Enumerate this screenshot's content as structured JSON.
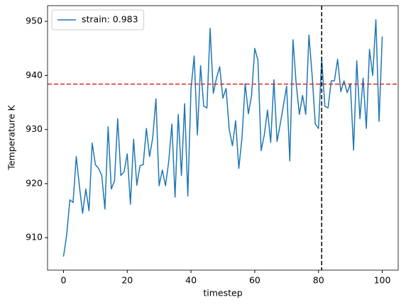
{
  "chart_data": {
    "type": "line",
    "x_label": "timestep",
    "y_label": "Temperature K",
    "x": [
      0,
      1,
      2,
      3,
      4,
      5,
      6,
      7,
      8,
      9,
      10,
      11,
      12,
      13,
      14,
      15,
      16,
      17,
      18,
      19,
      20,
      21,
      22,
      23,
      24,
      25,
      26,
      27,
      28,
      29,
      30,
      31,
      32,
      33,
      34,
      35,
      36,
      37,
      38,
      39,
      40,
      41,
      42,
      43,
      44,
      45,
      46,
      47,
      48,
      49,
      50,
      51,
      52,
      53,
      54,
      55,
      56,
      57,
      58,
      59,
      60,
      61,
      62,
      63,
      64,
      65,
      66,
      67,
      68,
      69,
      70,
      71,
      72,
      73,
      74,
      75,
      76,
      77,
      78,
      79,
      80,
      81,
      82,
      83,
      84,
      85,
      86,
      87,
      88,
      89,
      90,
      91,
      92,
      93,
      94,
      95,
      96,
      97,
      98,
      99,
      100
    ],
    "series": [
      {
        "name": "strain: 0.983",
        "color": "#1f77b4",
        "values": [
          906.5,
          910.5,
          917,
          916.5,
          925,
          919.5,
          914.5,
          919,
          915,
          927.5,
          923.5,
          922.8,
          921.5,
          915.3,
          930.5,
          919,
          920.5,
          932,
          921.5,
          922.2,
          925.5,
          916.2,
          928.2,
          919.7,
          923.3,
          923.5,
          930.2,
          925,
          928.5,
          935.7,
          919.6,
          922.5,
          919.6,
          924,
          931,
          917.5,
          932.8,
          921.5,
          934.8,
          917.7,
          937.5,
          943.6,
          929,
          941.8,
          934.3,
          934,
          948.7,
          936.7,
          939.5,
          941.6,
          935.8,
          937.6,
          930,
          927,
          931.6,
          922.8,
          928.5,
          938.5,
          932.9,
          936.3,
          945,
          942.8,
          926.1,
          929,
          933.6,
          927.6,
          939.2,
          927.8,
          931,
          934.5,
          938,
          924.2,
          946.6,
          938.4,
          932.8,
          936.3,
          932.8,
          947.5,
          940,
          931,
          930.2,
          943,
          934.3,
          934,
          939,
          939,
          943,
          937,
          939,
          936.8,
          938.5,
          926.2,
          942.7,
          932,
          939.5,
          930.2,
          944.8,
          940,
          950.3,
          931.5,
          947.2
        ]
      }
    ],
    "hline": {
      "value": 938.4,
      "color": "#d62728"
    },
    "vline": {
      "value": 81,
      "color": "#000000"
    },
    "xlim": [
      -5,
      105
    ],
    "xticks": [
      0,
      20,
      40,
      60,
      80,
      100
    ],
    "ylim": [
      904,
      952.9
    ],
    "yticks": [
      910,
      920,
      930,
      940,
      950
    ],
    "legend": "upper left",
    "grid": false
  }
}
